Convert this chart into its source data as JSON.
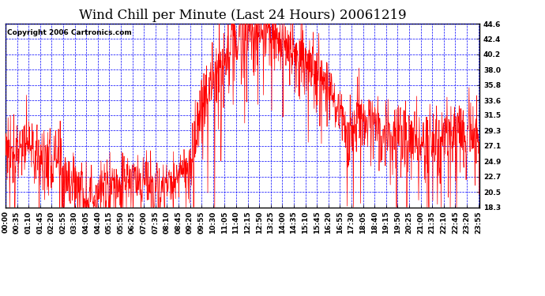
{
  "title": "Wind Chill per Minute (Last 24 Hours) 20061219",
  "copyright_text": "Copyright 2006 Cartronics.com",
  "ylabel_values": [
    18.3,
    20.5,
    22.7,
    24.9,
    27.1,
    29.3,
    31.5,
    33.6,
    35.8,
    38.0,
    40.2,
    42.4,
    44.6
  ],
  "ylim": [
    18.3,
    44.6
  ],
  "xlim": [
    0,
    1439
  ],
  "line_color": "#FF0000",
  "grid_color": "#0000FF",
  "background_color": "#FFFFFF",
  "plot_bg_color": "#FFFFFF",
  "title_fontsize": 12,
  "copyright_fontsize": 6.5,
  "tick_fontsize": 6.5,
  "x_tick_labels": [
    "00:00",
    "00:35",
    "01:10",
    "01:45",
    "02:20",
    "02:55",
    "03:30",
    "04:05",
    "04:40",
    "05:15",
    "05:50",
    "06:25",
    "07:00",
    "07:35",
    "08:10",
    "08:45",
    "09:20",
    "09:55",
    "10:30",
    "11:05",
    "11:40",
    "12:15",
    "12:50",
    "13:25",
    "14:00",
    "14:35",
    "15:10",
    "15:45",
    "16:20",
    "16:55",
    "17:30",
    "18:05",
    "18:40",
    "19:15",
    "19:50",
    "20:25",
    "21:00",
    "21:35",
    "22:10",
    "22:45",
    "23:20",
    "23:55"
  ],
  "x_tick_positions": [
    0,
    35,
    70,
    105,
    140,
    175,
    210,
    245,
    280,
    315,
    350,
    385,
    420,
    455,
    490,
    525,
    560,
    595,
    630,
    665,
    700,
    735,
    770,
    805,
    840,
    875,
    910,
    945,
    980,
    1015,
    1050,
    1085,
    1120,
    1155,
    1190,
    1225,
    1260,
    1295,
    1330,
    1365,
    1400,
    1435
  ]
}
